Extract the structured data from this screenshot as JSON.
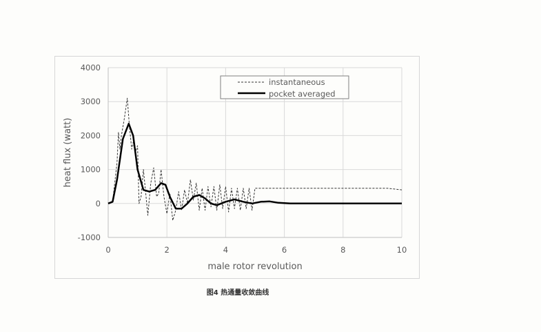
{
  "chart_data": {
    "type": "line",
    "title": "",
    "xlabel": "male rotor revolution",
    "ylabel": "heat flux  (watt)",
    "xlim": [
      0,
      10
    ],
    "ylim": [
      -1000,
      4000
    ],
    "x_ticks": [
      "0",
      "2",
      "4",
      "6",
      "8",
      "10"
    ],
    "y_ticks": [
      "4000",
      "3000",
      "2000",
      "1000",
      "0",
      "-1000"
    ],
    "grid": true,
    "legend_position": "top-right-inside",
    "series": [
      {
        "name": "instantaneous",
        "style": "dashed",
        "x": [
          0,
          0.15,
          0.3,
          0.35,
          0.4,
          0.45,
          0.55,
          0.65,
          0.72,
          0.8,
          0.85,
          0.92,
          1.0,
          1.05,
          1.12,
          1.2,
          1.3,
          1.35,
          1.45,
          1.55,
          1.65,
          1.72,
          1.8,
          1.9,
          2.0,
          2.1,
          2.2,
          2.3,
          2.4,
          2.5,
          2.6,
          2.7,
          2.8,
          2.9,
          3.0,
          3.1,
          3.2,
          3.3,
          3.4,
          3.5,
          3.6,
          3.7,
          3.8,
          3.9,
          4.0,
          4.1,
          4.2,
          4.3,
          4.4,
          4.5,
          4.6,
          4.7,
          4.8,
          4.9,
          5.0,
          5.5,
          6.0,
          6.5,
          7.0,
          7.5,
          8.0,
          8.5,
          9.0,
          9.5,
          10.0
        ],
        "y": [
          0,
          50,
          1200,
          2100,
          1600,
          2000,
          2500,
          3100,
          2300,
          1600,
          1800,
          1500,
          1700,
          0,
          200,
          1000,
          100,
          -350,
          600,
          1050,
          200,
          300,
          1000,
          200,
          -300,
          300,
          -500,
          -200,
          350,
          -200,
          400,
          0,
          700,
          100,
          600,
          -200,
          450,
          -200,
          500,
          -100,
          500,
          -200,
          550,
          -150,
          500,
          -250,
          450,
          -150,
          450,
          -200,
          450,
          -150,
          450,
          -200,
          450,
          450,
          450,
          450,
          450,
          450,
          450,
          450,
          450,
          450,
          400
        ]
      },
      {
        "name": "pocket averaged",
        "style": "solid",
        "x": [
          0,
          0.15,
          0.3,
          0.5,
          0.7,
          0.85,
          1.0,
          1.2,
          1.4,
          1.6,
          1.8,
          1.95,
          2.1,
          2.3,
          2.5,
          2.7,
          2.9,
          3.1,
          3.3,
          3.5,
          3.7,
          4.0,
          4.3,
          4.6,
          4.9,
          5.2,
          5.5,
          5.8,
          6.2,
          7.0,
          8.0,
          9.0,
          10.0
        ],
        "y": [
          0,
          50,
          700,
          1900,
          2350,
          2000,
          1000,
          400,
          350,
          400,
          600,
          550,
          200,
          -150,
          -150,
          0,
          200,
          250,
          150,
          0,
          -50,
          50,
          120,
          50,
          0,
          50,
          60,
          20,
          0,
          0,
          0,
          0,
          0
        ]
      }
    ],
    "caption": "图4 热通量收敛曲线"
  }
}
